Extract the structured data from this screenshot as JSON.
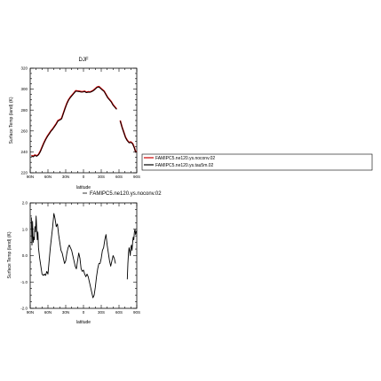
{
  "chart_data": [
    {
      "type": "line",
      "title": "DJF",
      "xlabel": "latitude",
      "ylabel": "Surface Temp (land) (K)",
      "ylim": [
        220,
        320
      ],
      "yticks": [
        220,
        240,
        260,
        280,
        300,
        320
      ],
      "yticklabels": [
        "220",
        "240",
        "260",
        "280",
        "300",
        "320"
      ],
      "xlim": [
        -90,
        90
      ],
      "xticks": [
        -90,
        -60,
        -30,
        0,
        30,
        60,
        90
      ],
      "xticklabels": [
        "90N",
        "60N",
        "30N",
        "0",
        "30S",
        "60S",
        "90S"
      ],
      "grid": false,
      "legend_position": "right",
      "series": [
        {
          "name": "FAMIPC5.ne120.ys.noconv.02",
          "color": "#cc0000",
          "segments": [
            {
              "x": [
                -88,
                -85,
                -82,
                -79,
                -76,
                -73,
                -70,
                -67,
                -64,
                -61,
                -58,
                -55,
                -52,
                -49,
                -46,
                -43,
                -40,
                -37,
                -34,
                -31,
                -28,
                -25,
                -22,
                -19,
                -16,
                -13,
                -10,
                -7,
                -4,
                -1,
                2,
                5,
                8,
                11,
                14,
                17,
                20,
                23,
                26,
                29,
                32,
                35,
                38,
                41,
                44,
                47,
                50,
                53,
                56
              ],
              "y": [
                236.5,
                235.8,
                237.0,
                236.2,
                237.5,
                240.5,
                244.5,
                248.5,
                252.0,
                255.0,
                257.5,
                260.0,
                262.0,
                264.5,
                267.0,
                270.0,
                270.8,
                272.0,
                277.0,
                282.0,
                286.5,
                290.0,
                292.5,
                294.5,
                296.5,
                298.5,
                298.2,
                298.0,
                297.6,
                297.6,
                298.0,
                297.0,
                297.5,
                297.3,
                298.0,
                299.0,
                300.5,
                302.0,
                302.5,
                301.0,
                299.5,
                298.0,
                295.0,
                292.0,
                290.0,
                288.0,
                285.0,
                283.0,
                281.0
              ]
            },
            {
              "x": [
                62,
                65,
                68,
                71,
                74,
                77,
                80,
                83,
                86,
                88,
                90
              ],
              "y": [
                270.0,
                264.0,
                259.0,
                254.0,
                251.0,
                249.0,
                249.5,
                248.0,
                244.0,
                240.0,
                240.5
              ]
            }
          ]
        },
        {
          "name": "FAMIPC5.ne120.ys.tau5m.02",
          "color": "#000000",
          "segments": [
            {
              "x": [
                -88,
                -85,
                -82,
                -79,
                -76,
                -73,
                -70,
                -67,
                -64,
                -61,
                -58,
                -55,
                -52,
                -49,
                -46,
                -43,
                -40,
                -37,
                -34,
                -31,
                -28,
                -25,
                -22,
                -19,
                -16,
                -13,
                -10,
                -7,
                -4,
                -1,
                2,
                5,
                8,
                11,
                14,
                17,
                20,
                23,
                26,
                29,
                32,
                35,
                38,
                41,
                44,
                47,
                50,
                53,
                56
              ],
              "y": [
                236.0,
                235.2,
                236.5,
                235.8,
                237.0,
                240.0,
                244.0,
                248.0,
                251.5,
                254.5,
                257.0,
                259.6,
                261.6,
                264.0,
                266.5,
                269.5,
                270.3,
                271.5,
                276.5,
                281.5,
                286.0,
                289.6,
                292.0,
                294.0,
                296.0,
                298.0,
                297.8,
                297.6,
                297.2,
                297.3,
                297.6,
                296.6,
                297.1,
                297.0,
                297.6,
                298.6,
                300.0,
                301.6,
                302.0,
                300.6,
                299.0,
                297.6,
                294.6,
                291.6,
                289.6,
                287.6,
                284.6,
                282.6,
                280.6
              ]
            },
            {
              "x": [
                62,
                65,
                68,
                71,
                74,
                77,
                80,
                83,
                86,
                88,
                90
              ],
              "y": [
                269.6,
                263.6,
                258.6,
                253.6,
                250.6,
                248.6,
                249.0,
                247.6,
                243.6,
                239.6,
                240.0
              ]
            }
          ]
        }
      ]
    },
    {
      "type": "line",
      "title": "FAMIPC5.ne120.ys.noconv.02",
      "xlabel": "latitude",
      "ylabel": "Surface Temp (land) (K)",
      "ylim": [
        -2.0,
        2.0
      ],
      "yticks": [
        -2.0,
        -1.0,
        0.0,
        1.0,
        2.0
      ],
      "yticklabels": [
        "-2.0",
        "-1.0",
        "0.0",
        "1.0",
        "2.0"
      ],
      "xlim": [
        -90,
        90
      ],
      "xticks": [
        -90,
        -60,
        -30,
        0,
        30,
        60,
        90
      ],
      "xticklabels": [
        "90N",
        "60N",
        "30N",
        "0",
        "30S",
        "60S",
        "90S"
      ],
      "grid": false,
      "series": [
        {
          "color": "#000000",
          "segments": [
            {
              "x": [
                -88,
                -87,
                -86,
                -85,
                -84,
                -83,
                -82,
                -81,
                -80,
                -79,
                -78,
                -77,
                -76,
                -75,
                -74,
                -72,
                -70,
                -68,
                -66,
                -64,
                -62,
                -60,
                -58,
                -56,
                -54,
                -52,
                -50,
                -48,
                -46,
                -44,
                -42,
                -40,
                -38,
                -36,
                -34,
                -32,
                -30,
                -28,
                -26,
                -24,
                -22,
                -20,
                -18,
                -16,
                -14,
                -12,
                -10,
                -8,
                -6,
                -4,
                -2,
                0,
                2,
                4,
                6,
                8,
                10,
                12,
                14,
                16,
                18,
                20,
                22,
                24,
                26,
                28,
                30,
                32,
                34,
                36,
                38,
                40,
                42,
                44,
                46,
                48,
                50,
                52,
                54
              ],
              "y": [
                1.45,
                0.4,
                1.3,
                0.5,
                0.7,
                0.6,
                1.1,
                0.9,
                1.5,
                1.0,
                0.6,
                0.9,
                0.3,
                0.1,
                -0.1,
                -0.4,
                -0.7,
                -0.75,
                -0.7,
                -0.75,
                -0.6,
                -0.7,
                -0.2,
                0.3,
                0.7,
                1.1,
                1.6,
                1.4,
                1.1,
                1.2,
                0.8,
                0.5,
                0.2,
                0.1,
                -0.1,
                -0.3,
                -0.2,
                0.1,
                0.3,
                0.4,
                0.3,
                0.2,
                0.0,
                -0.2,
                -0.4,
                -0.5,
                -0.2,
                0.1,
                -0.1,
                -0.5,
                -0.6,
                -0.55,
                -0.7,
                -0.8,
                -0.7,
                -0.8,
                -1.0,
                -1.2,
                -1.4,
                -1.6,
                -1.5,
                -1.2,
                -0.8,
                -0.5,
                -0.3,
                -0.3,
                -0.1,
                0.2,
                0.3,
                0.6,
                0.8,
                0.4,
                0.1,
                -0.2,
                -0.4,
                -0.2,
                0.0,
                -0.1,
                -0.3
              ]
            },
            {
              "x": [
                74,
                75,
                76,
                77,
                78,
                79,
                80,
                81,
                82,
                83,
                84,
                85,
                86,
                87,
                88,
                89,
                90
              ],
              "y": [
                -0.9,
                -0.3,
                0.1,
                0.3,
                0.2,
                0.0,
                0.3,
                0.4,
                0.2,
                0.5,
                0.7,
                0.6,
                0.9,
                1.0,
                0.8,
                0.9,
                0.95
              ]
            }
          ]
        }
      ]
    }
  ]
}
